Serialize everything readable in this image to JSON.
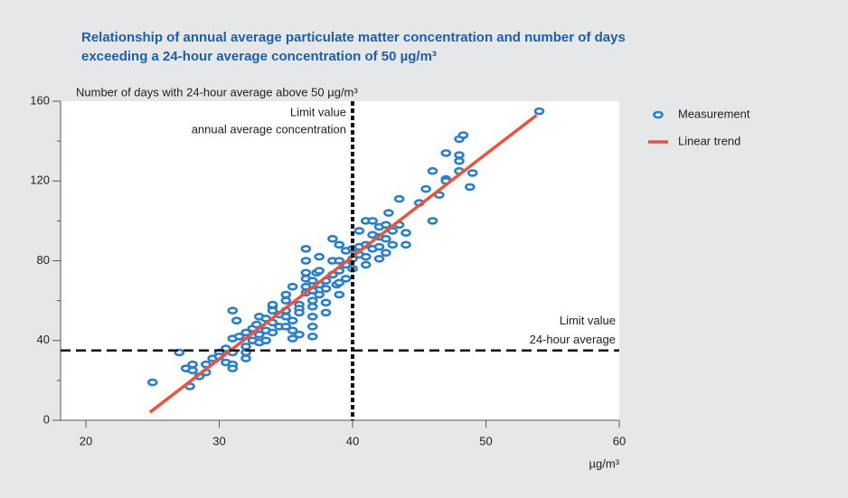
{
  "chart_data": {
    "type": "scatter",
    "title": [
      "Relationship of annual average particulate matter concentration and number of days",
      "exceeding a 24-hour average concentration of 50 µg/m³"
    ],
    "y_label": "Number of days with 24-hour average above 50 µg/m³",
    "x_label": "µg/m³",
    "xlim": [
      18.1,
      60
    ],
    "xticks": [
      20,
      30,
      40,
      50,
      60
    ],
    "ylim": [
      0,
      160
    ],
    "yticks": [
      0,
      40,
      80,
      120,
      160
    ],
    "yminorticks": [
      20,
      60,
      100,
      140
    ],
    "reference_lines": [
      {
        "axis": "x",
        "value": 40,
        "label": [
          "Limit value",
          "annual average concentration"
        ]
      },
      {
        "axis": "y",
        "value": 35,
        "label": [
          "Limit value",
          "24-hour average"
        ]
      }
    ],
    "series": [
      {
        "name": "Measurement",
        "type": "scatter",
        "color": "#2a7fc8",
        "x": [
          25,
          27,
          27.5,
          28,
          28,
          27.8,
          28.5,
          29,
          29,
          29.5,
          30,
          30,
          30.5,
          30.5,
          31,
          31,
          31,
          31,
          31.5,
          31.3,
          31,
          32,
          32,
          32,
          32,
          32.5,
          32.5,
          32.8,
          33,
          33,
          33,
          33.5,
          33.5,
          33.5,
          34,
          34,
          34,
          34,
          34,
          34.5,
          34.5,
          35,
          35,
          35,
          35,
          35,
          35.5,
          35.5,
          35.5,
          35.5,
          36,
          36,
          36,
          36,
          36.5,
          36.5,
          36.5,
          36.5,
          36.5,
          36.5,
          37,
          37,
          37,
          37,
          37,
          37,
          37,
          37.3,
          37.5,
          37.5,
          37.5,
          37.5,
          38,
          38,
          38,
          38,
          38.5,
          38.5,
          38.5,
          38.8,
          39,
          39,
          39,
          39,
          39,
          39.5,
          39.5,
          39.5,
          40,
          40,
          40,
          40.5,
          40.5,
          40.5,
          41,
          41,
          41,
          41,
          41.5,
          41.5,
          41.5,
          42,
          42,
          42,
          42,
          42.5,
          42.5,
          42.5,
          42.7,
          43,
          43,
          43.5,
          43.5,
          44,
          44,
          45,
          45.5,
          46,
          46,
          46.5,
          47,
          47,
          47,
          48,
          48,
          48,
          48,
          48.3,
          48.8,
          49,
          54
        ],
        "values": [
          19,
          34,
          26,
          28,
          25,
          17,
          22,
          24,
          28,
          31,
          34,
          32,
          29,
          36,
          34,
          28,
          26,
          41,
          42,
          50,
          55,
          44,
          37,
          34,
          31,
          40,
          46,
          48,
          43,
          39,
          52,
          45,
          40,
          51,
          57,
          55,
          49,
          44,
          58,
          53,
          47,
          63,
          60,
          55,
          52,
          47,
          67,
          50,
          45,
          41,
          58,
          56,
          54,
          43,
          74,
          71,
          80,
          86,
          67,
          64,
          70,
          65,
          60,
          57,
          52,
          47,
          42,
          74,
          82,
          75,
          68,
          63,
          66,
          59,
          54,
          70,
          91,
          80,
          73,
          68,
          88,
          80,
          75,
          69,
          63,
          85,
          78,
          71,
          86,
          81,
          76,
          83,
          87,
          95,
          100,
          88,
          82,
          78,
          100,
          93,
          86,
          97,
          92,
          87,
          81,
          98,
          91,
          84,
          104,
          95,
          88,
          111,
          98,
          88,
          94,
          109,
          116,
          125,
          100,
          113,
          121,
          134,
          120,
          141,
          133,
          130,
          125,
          143,
          117,
          124,
          155
        ]
      },
      {
        "name": "Linear trend",
        "type": "line",
        "color": "#e8553e",
        "x": [
          24.8,
          53.8
        ],
        "values": [
          4,
          153
        ]
      }
    ]
  }
}
